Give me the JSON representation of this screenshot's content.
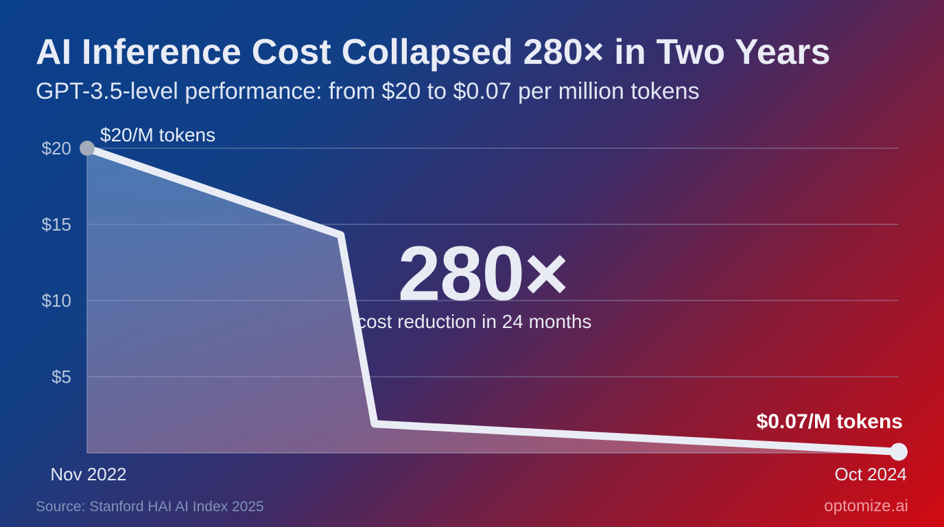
{
  "header": {
    "title": "AI Inference Cost Collapsed 280× in Two Years",
    "subtitle": "GPT-3.5-level performance: from $20 to $0.07 per million tokens"
  },
  "callout": {
    "value": "280×",
    "caption": "cost reduction in 24 months"
  },
  "footer": {
    "source": "Source: Stanford HAI AI Index 2025",
    "brand": "optomize.ai"
  },
  "colors": {
    "line": "#e9ecf4",
    "start_point": "#a3abba",
    "end_point": "#e9ecf4",
    "grid": "#9aa8c8"
  },
  "chart_data": {
    "type": "area",
    "x_start_label": "Nov 2022",
    "x_end_label": "Oct 2024",
    "x_months": [
      0,
      7.5,
      8.5,
      24
    ],
    "values": [
      20,
      14.3,
      1.9,
      0.07
    ],
    "ylim": [
      0,
      20
    ],
    "yticks": [
      5,
      10,
      15,
      20
    ],
    "ytick_labels": [
      "$5",
      "$10",
      "$15",
      "$20"
    ],
    "start_label": "$20/M tokens",
    "end_label": "$0.07/M tokens",
    "grid": true
  }
}
